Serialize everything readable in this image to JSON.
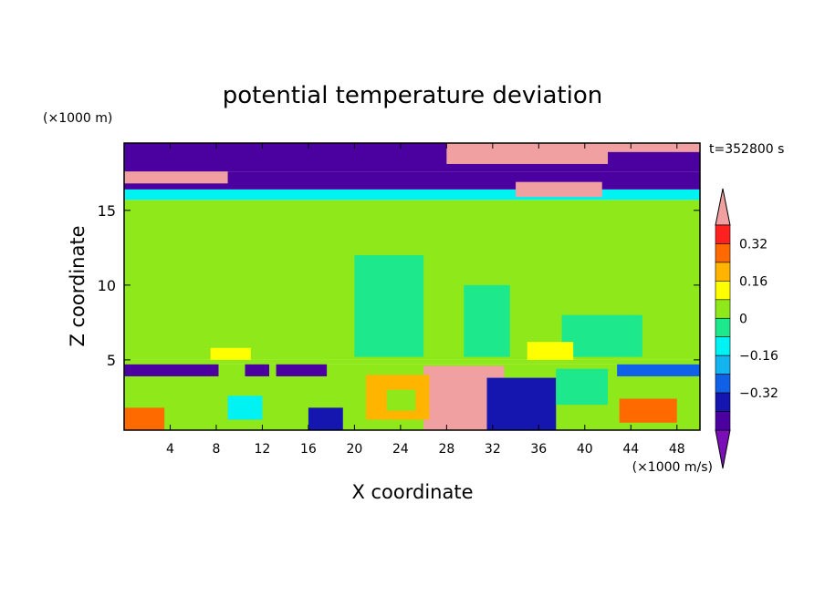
{
  "chart_data": {
    "type": "heatmap",
    "title": "potential temperature deviation",
    "xlabel": "X coordinate",
    "ylabel": "Z coordinate",
    "x_unit": "(×1000 m/s)",
    "y_unit": "(×1000 m)",
    "time_label": "t=352800 s",
    "xlim": [
      0,
      50
    ],
    "ylim": [
      0.3,
      19.5
    ],
    "x_ticks": [
      4,
      8,
      12,
      16,
      20,
      24,
      28,
      32,
      36,
      40,
      44,
      48
    ],
    "y_ticks": [
      5,
      10,
      15
    ],
    "colorbar": {
      "levels": [
        -0.48,
        -0.4,
        -0.32,
        -0.24,
        -0.16,
        -0.08,
        0,
        0.08,
        0.16,
        0.24,
        0.32,
        0.4,
        0.48
      ],
      "tick_labels": [
        "0.32",
        "0.16",
        "0",
        "−0.16",
        "−0.32"
      ],
      "tick_values": [
        0.32,
        0.16,
        0,
        -0.16,
        -0.32
      ],
      "colors": [
        "#7a0fb8",
        "#4b00a0",
        "#1515b0",
        "#1060e8",
        "#14b4f0",
        "#00f2f2",
        "#1ee88c",
        "#8ee81a",
        "#ffff00",
        "#ffb400",
        "#ff6a00",
        "#ff2020",
        "#f0a0a0"
      ],
      "extend": "both"
    },
    "regions": [
      {
        "x0": 0,
        "x1": 50,
        "z0": 5.0,
        "z1": 15.7,
        "value": 0.04
      },
      {
        "x0": 0,
        "x1": 50,
        "z0": 15.7,
        "z1": 16.4,
        "value": -0.12
      },
      {
        "x0": 0,
        "x1": 50,
        "z0": 16.4,
        "z1": 17.6,
        "value": -0.4
      },
      {
        "x0": 0,
        "x1": 50,
        "z0": 17.6,
        "z1": 19.5,
        "value": -0.44
      },
      {
        "x0": 0,
        "x1": 50,
        "z0": 4.7,
        "z1": 5.0,
        "value": 0.1
      },
      {
        "x0": 0,
        "x1": 50,
        "z0": 0.3,
        "z1": 4.7,
        "value": 0.08
      },
      {
        "x0": 0,
        "x1": 8.2,
        "z0": 3.9,
        "z1": 4.7,
        "value": -0.44
      },
      {
        "x0": 10.5,
        "x1": 12.6,
        "z0": 3.9,
        "z1": 4.7,
        "value": -0.44
      },
      {
        "x0": 13.2,
        "x1": 17.6,
        "z0": 3.9,
        "z1": 4.7,
        "value": -0.44
      },
      {
        "x0": 42.8,
        "x1": 50,
        "z0": 3.9,
        "z1": 4.7,
        "value": -0.28
      },
      {
        "x0": 26,
        "x1": 33,
        "z0": 0.3,
        "z1": 4.6,
        "value": 0.48
      },
      {
        "x0": 21,
        "x1": 26.5,
        "z0": 1.0,
        "z1": 4.0,
        "value": 0.24
      },
      {
        "x0": 22.8,
        "x1": 25.3,
        "z0": 1.6,
        "z1": 3.0,
        "value": 0.04
      },
      {
        "x0": 31.5,
        "x1": 37.5,
        "z0": 0.3,
        "z1": 3.8,
        "value": -0.36
      },
      {
        "x0": 16,
        "x1": 19,
        "z0": 0.3,
        "z1": 1.8,
        "value": -0.36
      },
      {
        "x0": 9,
        "x1": 12,
        "z0": 1.0,
        "z1": 2.6,
        "value": -0.12
      },
      {
        "x0": 0,
        "x1": 3.5,
        "z0": 0.3,
        "z1": 1.8,
        "value": 0.32
      },
      {
        "x0": 37.5,
        "x1": 42,
        "z0": 2.0,
        "z1": 4.4,
        "value": -0.04
      },
      {
        "x0": 43,
        "x1": 48,
        "z0": 0.8,
        "z1": 2.4,
        "value": 0.28
      },
      {
        "x0": 0,
        "x1": 25,
        "z0": 11,
        "z1": 15.5,
        "value": 0.08
      },
      {
        "x0": 30,
        "x1": 49,
        "z0": 11,
        "z1": 15.5,
        "value": 0.08
      },
      {
        "x0": 20,
        "x1": 26,
        "z0": 5.2,
        "z1": 12,
        "value": -0.04
      },
      {
        "x0": 29.5,
        "x1": 33.5,
        "z0": 5.2,
        "z1": 10,
        "value": -0.04
      },
      {
        "x0": 38,
        "x1": 45,
        "z0": 5.2,
        "z1": 8,
        "value": -0.04
      },
      {
        "x0": 35,
        "x1": 39,
        "z0": 5.0,
        "z1": 6.2,
        "value": 0.16
      },
      {
        "x0": 7.5,
        "x1": 11,
        "z0": 5.0,
        "z1": 5.8,
        "value": 0.16
      },
      {
        "x0": 28,
        "x1": 42,
        "z0": 18.1,
        "z1": 19.5,
        "value": 0.48
      },
      {
        "x0": 0,
        "x1": 9,
        "z0": 16.8,
        "z1": 17.6,
        "value": 0.48
      },
      {
        "x0": 34,
        "x1": 41.5,
        "z0": 15.9,
        "z1": 16.9,
        "value": 0.48
      },
      {
        "x0": 39.5,
        "x1": 50,
        "z0": 18.9,
        "z1": 19.5,
        "value": 0.48
      }
    ]
  }
}
